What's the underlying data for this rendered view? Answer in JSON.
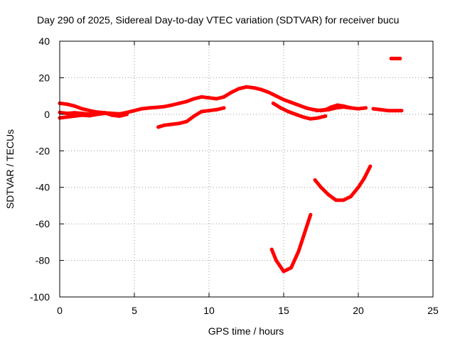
{
  "chart_data": {
    "type": "scatter",
    "title": "Day 290 of 2025, Sidereal Day-to-day VTEC variation (SDTVAR) for receiver bucu",
    "xlabel": "GPS time / hours",
    "ylabel": "SDTVAR / TECUs",
    "xlim": [
      0,
      25
    ],
    "ylim": [
      -100,
      40
    ],
    "xticks": [
      "0",
      "5",
      "10",
      "15",
      "20",
      "25"
    ],
    "yticks": [
      "40",
      "20",
      "0",
      "-20",
      "-40",
      "-60",
      "-80",
      "-100"
    ],
    "grid": true,
    "color": "#ff0000",
    "series": [
      {
        "name": "s1",
        "points": [
          [
            0,
            6
          ],
          [
            0.5,
            5.5
          ],
          [
            1,
            4.5
          ],
          [
            1.5,
            3
          ],
          [
            2,
            2
          ],
          [
            2.5,
            1.2
          ],
          [
            3,
            0.8
          ],
          [
            3.5,
            0.5
          ],
          [
            4,
            0.2
          ],
          [
            4.5,
            1
          ],
          [
            5,
            2
          ],
          [
            5.5,
            3
          ],
          [
            6,
            3.5
          ],
          [
            6.5,
            3.8
          ],
          [
            7,
            4.2
          ],
          [
            7.5,
            5
          ],
          [
            8,
            6
          ],
          [
            8.5,
            7
          ],
          [
            9,
            8.5
          ],
          [
            9.5,
            9.5
          ],
          [
            10,
            9
          ],
          [
            10.5,
            8.5
          ],
          [
            11,
            9.5
          ],
          [
            11.5,
            12
          ],
          [
            12,
            14
          ],
          [
            12.5,
            15
          ],
          [
            13,
            14.5
          ],
          [
            13.5,
            13.5
          ],
          [
            14,
            12
          ],
          [
            14.5,
            10
          ],
          [
            15,
            8
          ],
          [
            15.5,
            6.5
          ],
          [
            16,
            5
          ],
          [
            16.5,
            3.5
          ],
          [
            17,
            2.5
          ],
          [
            17.5,
            2
          ],
          [
            18,
            2.5
          ],
          [
            18.5,
            3.5
          ],
          [
            19,
            4
          ],
          [
            19.5,
            3.5
          ],
          [
            20,
            3
          ],
          [
            20.5,
            3.5
          ]
        ]
      },
      {
        "name": "s2",
        "points": [
          [
            0,
            1
          ],
          [
            0.5,
            0.5
          ],
          [
            1,
            0.8
          ],
          [
            1.5,
            0.5
          ],
          [
            2,
            0
          ],
          [
            2.5,
            0.5
          ],
          [
            3,
            0.8
          ],
          [
            3.5,
            -0.5
          ],
          [
            4,
            -1
          ],
          [
            4.5,
            0
          ]
        ]
      },
      {
        "name": "s3",
        "points": [
          [
            0,
            -2
          ],
          [
            0.5,
            -1.5
          ],
          [
            1,
            -1
          ],
          [
            1.5,
            -0.5
          ],
          [
            2,
            -0.8
          ],
          [
            2.5,
            0
          ],
          [
            3,
            0.5
          ]
        ]
      },
      {
        "name": "s4",
        "points": [
          [
            6.6,
            -7
          ],
          [
            7,
            -6
          ],
          [
            7.5,
            -5.5
          ],
          [
            8,
            -5
          ],
          [
            8.5,
            -4
          ],
          [
            9,
            -1
          ],
          [
            9.5,
            1.5
          ],
          [
            10,
            2
          ],
          [
            10.5,
            2.5
          ],
          [
            11,
            3.5
          ]
        ]
      },
      {
        "name": "s5",
        "points": [
          [
            14.3,
            6
          ],
          [
            14.8,
            3.5
          ],
          [
            15.3,
            1.5
          ],
          [
            15.8,
            0
          ],
          [
            16.3,
            -1.5
          ],
          [
            16.8,
            -2.5
          ],
          [
            17.3,
            -2
          ],
          [
            17.8,
            -1
          ]
        ]
      },
      {
        "name": "s6",
        "points": [
          [
            17.2,
            2
          ],
          [
            17.8,
            2.5
          ],
          [
            18.2,
            4
          ],
          [
            18.6,
            5
          ],
          [
            19,
            4.5
          ],
          [
            19.5,
            3.5
          ]
        ]
      },
      {
        "name": "s7",
        "points": [
          [
            21,
            3
          ],
          [
            21.5,
            2.5
          ],
          [
            22,
            2
          ],
          [
            22.5,
            2
          ],
          [
            22.9,
            2
          ]
        ]
      },
      {
        "name": "s8",
        "points": [
          [
            22.2,
            30.5
          ],
          [
            22.8,
            30.5
          ]
        ]
      },
      {
        "name": "s9",
        "points": [
          [
            14.2,
            -74
          ],
          [
            14.5,
            -80
          ],
          [
            15,
            -86
          ],
          [
            15.5,
            -84
          ],
          [
            16,
            -75
          ],
          [
            16.4,
            -65
          ],
          [
            16.8,
            -55
          ]
        ]
      },
      {
        "name": "s10",
        "points": [
          [
            17.1,
            -36
          ],
          [
            17.5,
            -40
          ],
          [
            18,
            -44
          ],
          [
            18.5,
            -47
          ],
          [
            19,
            -47
          ],
          [
            19.5,
            -45
          ],
          [
            20,
            -40
          ],
          [
            20.4,
            -35
          ],
          [
            20.8,
            -28.5
          ]
        ]
      }
    ]
  }
}
